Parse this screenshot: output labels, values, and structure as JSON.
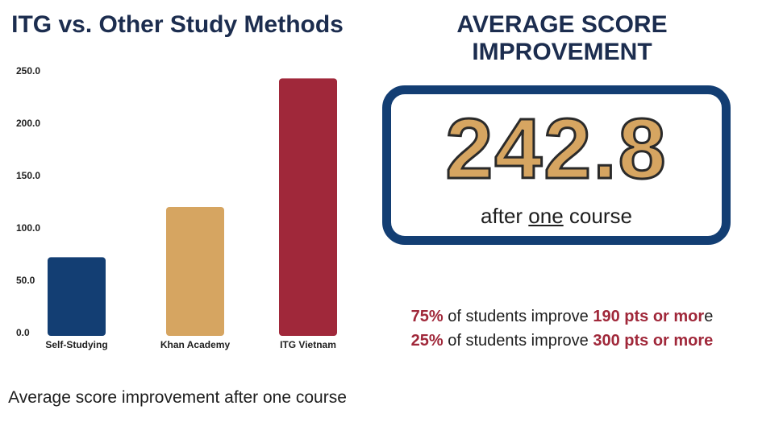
{
  "left_title": "ITG vs. Other Study Methods",
  "right_title": "AVERAGE SCORE IMPROVEMENT",
  "chart_data": {
    "type": "bar",
    "categories": [
      "Self-Studying",
      "Khan Academy",
      "ITG Vietnam"
    ],
    "values": [
      72,
      120,
      242.8
    ],
    "colors": [
      "#133e73",
      "#d6a561",
      "#a0283a"
    ],
    "ylim": [
      0,
      250
    ],
    "yticks": [
      "0.0",
      "50.0",
      "100.0",
      "150.0",
      "200.0",
      "250.0"
    ],
    "ytick_values": [
      0,
      50,
      100,
      150,
      200,
      250
    ],
    "grid": false,
    "legend": "none"
  },
  "caption": "Average score improvement after one course",
  "stat_box": {
    "value": "242.8",
    "sub_before": "after ",
    "sub_underlined": "one",
    "sub_after": " course"
  },
  "stats": [
    {
      "percent": "75%",
      "middle": " of students improve ",
      "highlight": "190 pts or mor",
      "tail": "e"
    },
    {
      "percent": "25%",
      "middle": " of students improve ",
      "highlight": "300 pts or more",
      "tail": ""
    }
  ],
  "colors": {
    "navy": "#133e73",
    "gold": "#d6a561",
    "red": "#a0283a",
    "title": "#1c2d4f"
  }
}
